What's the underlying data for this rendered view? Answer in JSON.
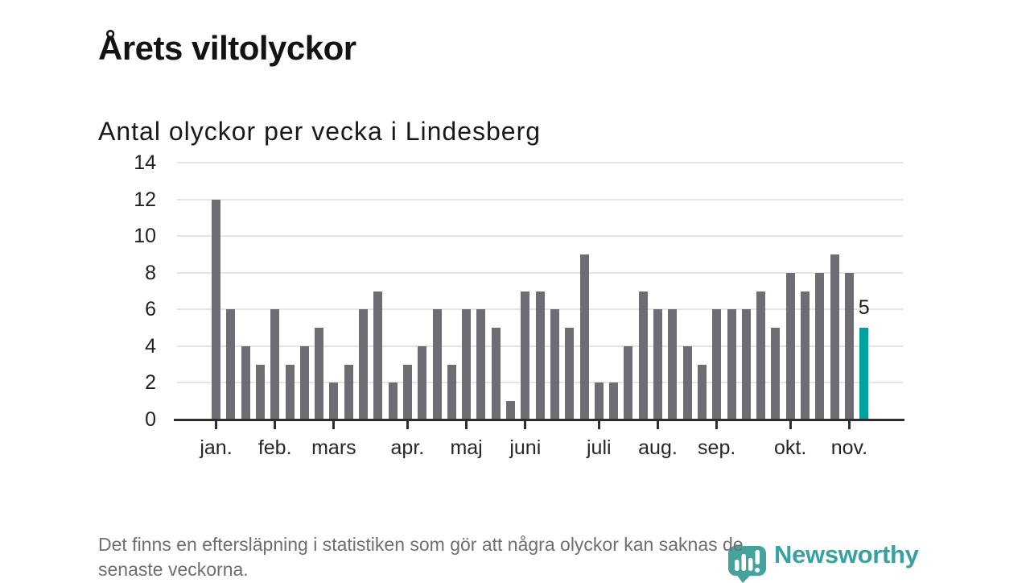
{
  "header": {
    "title": "Årets viltolyckor",
    "subtitle": "Antal olyckor per vecka i Lindesberg"
  },
  "chart_data": {
    "type": "bar",
    "title": "Årets viltolyckor",
    "subtitle": "Antal olyckor per vecka i Lindesberg",
    "xlabel": "",
    "ylabel": "",
    "x_unit": "vecka",
    "weeks": 45,
    "values": [
      12,
      6,
      4,
      3,
      6,
      3,
      4,
      5,
      2,
      3,
      6,
      7,
      2,
      3,
      4,
      6,
      3,
      6,
      6,
      5,
      1,
      7,
      7,
      6,
      5,
      9,
      2,
      2,
      4,
      7,
      6,
      6,
      4,
      3,
      6,
      6,
      6,
      7,
      5,
      8,
      7,
      8,
      9,
      8,
      5
    ],
    "ylim": [
      0,
      14
    ],
    "ytick_step": 2,
    "ytick_labels": [
      "0",
      "2",
      "4",
      "6",
      "8",
      "10",
      "12",
      "14"
    ],
    "grid": true,
    "month_ticks": [
      {
        "label": "jan.",
        "week": 1
      },
      {
        "label": "feb.",
        "week": 5
      },
      {
        "label": "mars",
        "week": 9
      },
      {
        "label": "apr.",
        "week": 14
      },
      {
        "label": "maj",
        "week": 18
      },
      {
        "label": "juni",
        "week": 22
      },
      {
        "label": "juli",
        "week": 27
      },
      {
        "label": "aug.",
        "week": 31
      },
      {
        "label": "sep.",
        "week": 35
      },
      {
        "label": "okt.",
        "week": 40
      },
      {
        "label": "nov.",
        "week": 44
      }
    ],
    "highlighted_bar": {
      "index": 45,
      "value": 5,
      "label": "5"
    },
    "colors": {
      "bar": "#6d6d74",
      "highlight": "#00a39b",
      "grid": "#e4e4e4",
      "axis": "#2e2e2e"
    }
  },
  "footer": {
    "note_lines": [
      "Det finns en eftersläpning i statistiken som gör att några olyckor kan saknas de",
      "senaste veckorna."
    ],
    "brand": "Newsworthy",
    "brand_color": "#38a1a2"
  }
}
